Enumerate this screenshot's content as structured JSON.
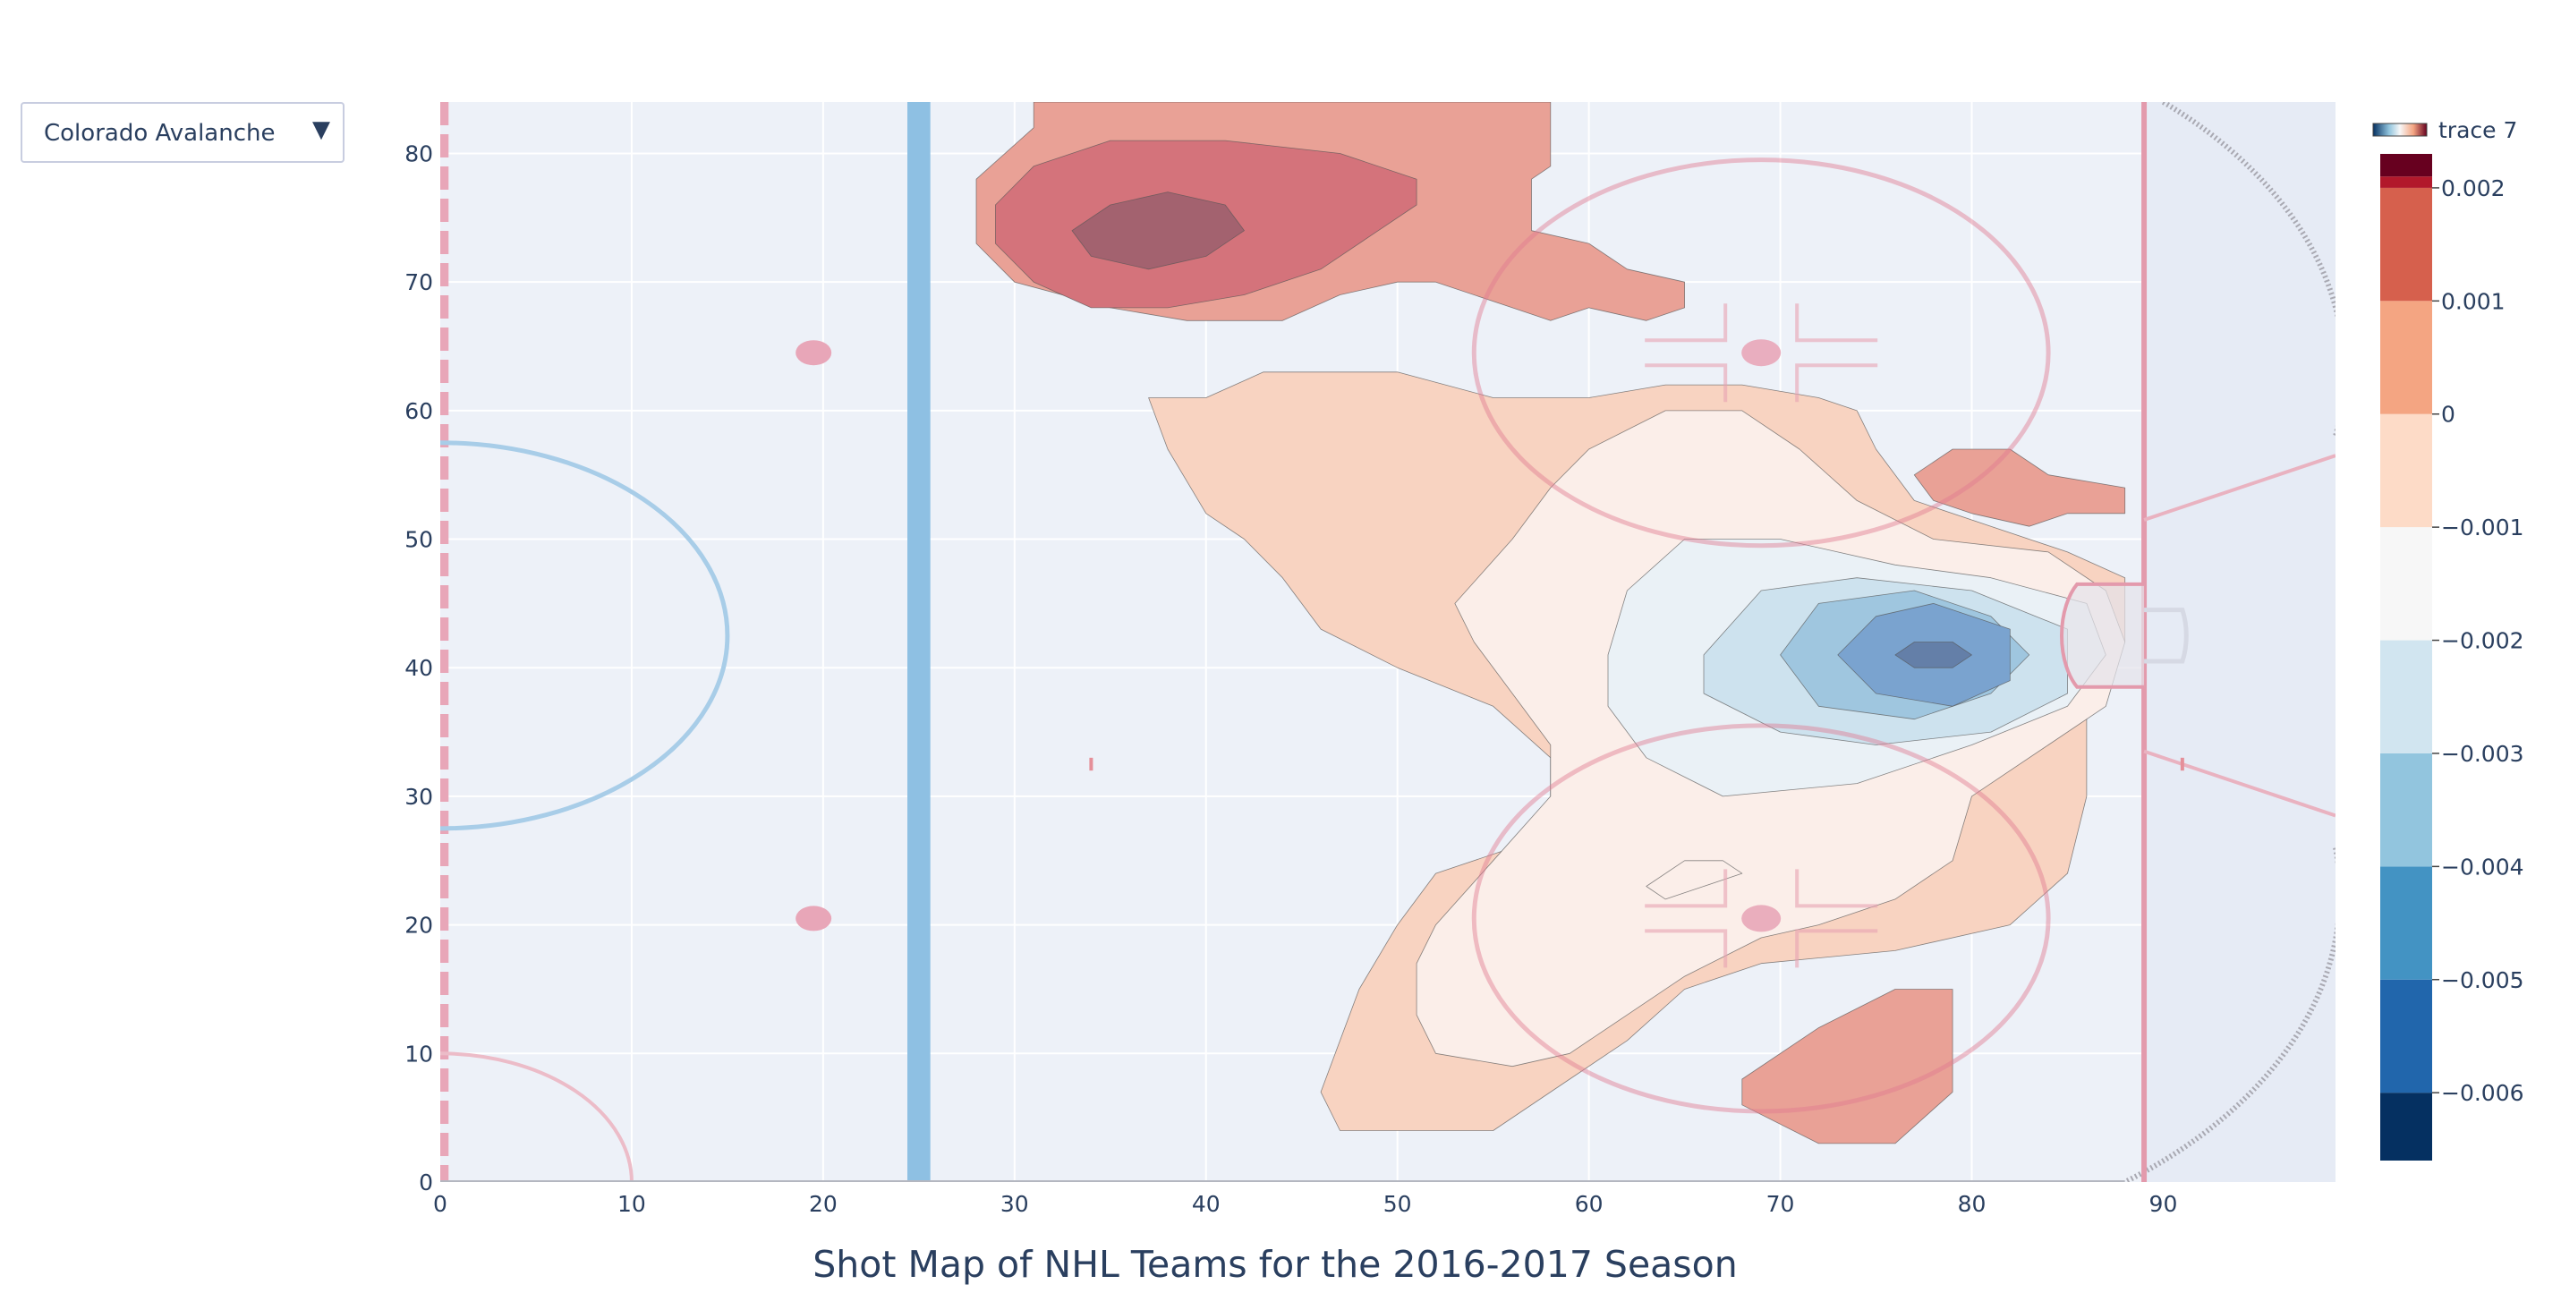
{
  "dropdown": {
    "selected": "Colorado Avalanche",
    "arrow_icon": "triangle-down-icon"
  },
  "chart_data": {
    "type": "contour",
    "title": "Shot Map of NHL Teams for the 2016-2017 Season",
    "xlabel": "",
    "ylabel": "",
    "xlim": [
      0,
      99
    ],
    "ylim": [
      0,
      84
    ],
    "x_ticks": [
      "0",
      "10",
      "20",
      "30",
      "40",
      "50",
      "60",
      "70",
      "80",
      "90"
    ],
    "y_ticks": [
      "0",
      "10",
      "20",
      "30",
      "40",
      "50",
      "60",
      "70",
      "80"
    ],
    "colorbar": {
      "name": "trace 7",
      "colorscale": "RdBu",
      "tick_labels": [
        "0.002",
        "0.001",
        "0",
        "−0.001",
        "−0.002",
        "−0.003",
        "−0.004",
        "−0.005",
        "−0.006"
      ],
      "tick_values": [
        0.002,
        0.001,
        0,
        -0.001,
        -0.002,
        -0.003,
        -0.004,
        -0.005,
        -0.006
      ],
      "range": [
        -0.0066,
        0.0023
      ],
      "colors": [
        "#053061",
        "#2166ac",
        "#4393c3",
        "#92c5de",
        "#d1e5f0",
        "#f7f7f7",
        "#fddbc7",
        "#f4a582",
        "#d6604d",
        "#b2182b",
        "#67001f"
      ]
    },
    "regions": [
      {
        "level": "0 to 0.001",
        "color": "#e9a196",
        "points": [
          [
            28,
            78
          ],
          [
            31,
            82
          ],
          [
            31,
            84
          ],
          [
            58,
            84
          ],
          [
            58,
            79
          ],
          [
            57,
            78
          ],
          [
            57,
            74
          ],
          [
            60,
            73
          ],
          [
            62,
            71
          ],
          [
            65,
            70
          ],
          [
            65,
            68
          ],
          [
            63,
            67
          ],
          [
            60,
            68
          ],
          [
            58,
            67
          ],
          [
            56,
            68
          ],
          [
            52,
            70
          ],
          [
            50,
            70
          ],
          [
            47,
            69
          ],
          [
            44,
            67
          ],
          [
            39,
            67
          ],
          [
            35,
            68
          ],
          [
            30,
            70
          ],
          [
            28,
            73
          ]
        ]
      },
      {
        "level": "0.001 to 0.002",
        "color": "#d4737b",
        "points": [
          [
            29,
            76
          ],
          [
            31,
            79
          ],
          [
            35,
            81
          ],
          [
            41,
            81
          ],
          [
            47,
            80
          ],
          [
            51,
            78
          ],
          [
            51,
            76
          ],
          [
            49,
            74
          ],
          [
            46,
            71
          ],
          [
            42,
            69
          ],
          [
            38,
            68
          ],
          [
            34,
            68
          ],
          [
            31,
            70
          ],
          [
            29,
            73
          ]
        ]
      },
      {
        "level": "above 0.002",
        "color": "#a3626f",
        "points": [
          [
            33,
            74
          ],
          [
            35,
            76
          ],
          [
            38,
            77
          ],
          [
            41,
            76
          ],
          [
            42,
            74
          ],
          [
            40,
            72
          ],
          [
            37,
            71
          ],
          [
            34,
            72
          ]
        ]
      },
      {
        "level": "0 to 0.001",
        "color": "#e9a196",
        "points": [
          [
            77,
            55
          ],
          [
            79,
            57
          ],
          [
            82,
            57
          ],
          [
            84,
            55
          ],
          [
            88,
            54
          ],
          [
            88,
            52
          ],
          [
            85,
            52
          ],
          [
            83,
            51
          ],
          [
            80,
            52
          ],
          [
            78,
            53
          ]
        ]
      },
      {
        "level": "0 to 0.001",
        "color": "#e9a196",
        "points": [
          [
            68,
            8
          ],
          [
            72,
            12
          ],
          [
            76,
            15
          ],
          [
            79,
            15
          ],
          [
            79,
            7
          ],
          [
            76,
            3
          ],
          [
            72,
            3
          ],
          [
            68,
            6
          ]
        ]
      },
      {
        "level": "-0.001 to 0",
        "color": "#f8d3c1",
        "points": [
          [
            37,
            61
          ],
          [
            40,
            61
          ],
          [
            43,
            63
          ],
          [
            50,
            63
          ],
          [
            55,
            61
          ],
          [
            60,
            61
          ],
          [
            64,
            62
          ],
          [
            68,
            62
          ],
          [
            72,
            61
          ],
          [
            74,
            60
          ],
          [
            75,
            57
          ],
          [
            77,
            53
          ],
          [
            81,
            51
          ],
          [
            85,
            49
          ],
          [
            88,
            47
          ],
          [
            88,
            42
          ],
          [
            86,
            36
          ],
          [
            86,
            30
          ],
          [
            85,
            24
          ],
          [
            82,
            20
          ],
          [
            76,
            18
          ],
          [
            69,
            17
          ],
          [
            65,
            15
          ],
          [
            62,
            11
          ],
          [
            59,
            8
          ],
          [
            55,
            4
          ],
          [
            47,
            4
          ],
          [
            46,
            7
          ],
          [
            47,
            11
          ],
          [
            48,
            15
          ],
          [
            50,
            20
          ],
          [
            52,
            24
          ],
          [
            56,
            26
          ],
          [
            58,
            30
          ],
          [
            58,
            33
          ],
          [
            55,
            37
          ],
          [
            50,
            40
          ],
          [
            46,
            43
          ],
          [
            44,
            47
          ],
          [
            42,
            50
          ],
          [
            40,
            52
          ],
          [
            38,
            57
          ]
        ]
      },
      {
        "level": "-0.002 to -0.001",
        "color": "#fbeee9",
        "points": [
          [
            53,
            45
          ],
          [
            56,
            50
          ],
          [
            58,
            54
          ],
          [
            60,
            57
          ],
          [
            64,
            60
          ],
          [
            68,
            60
          ],
          [
            71,
            57
          ],
          [
            74,
            53
          ],
          [
            78,
            50
          ],
          [
            84,
            49
          ],
          [
            87,
            46
          ],
          [
            88,
            42
          ],
          [
            87,
            37
          ],
          [
            84,
            34
          ],
          [
            80,
            30
          ],
          [
            79,
            25
          ],
          [
            76,
            22
          ],
          [
            72,
            20
          ],
          [
            69,
            19
          ],
          [
            65,
            16
          ],
          [
            62,
            13
          ],
          [
            59,
            10
          ],
          [
            56,
            9
          ],
          [
            52,
            10
          ],
          [
            51,
            13
          ],
          [
            51,
            17
          ],
          [
            52,
            20
          ],
          [
            55,
            25
          ],
          [
            58,
            30
          ],
          [
            58,
            34
          ],
          [
            56,
            38
          ],
          [
            54,
            42
          ]
        ]
      },
      {
        "level": "-0.003 to -0.002",
        "color": "#eaf1f6",
        "points": [
          [
            61,
            41
          ],
          [
            62,
            46
          ],
          [
            65,
            50
          ],
          [
            70,
            50
          ],
          [
            76,
            48
          ],
          [
            81,
            47
          ],
          [
            86,
            45
          ],
          [
            87,
            41
          ],
          [
            85,
            37
          ],
          [
            80,
            34
          ],
          [
            74,
            31
          ],
          [
            67,
            30
          ],
          [
            63,
            33
          ],
          [
            61,
            37
          ]
        ]
      },
      {
        "level": "-0.004 to -0.003",
        "color": "#cde2ee",
        "points": [
          [
            66,
            41
          ],
          [
            69,
            46
          ],
          [
            74,
            47
          ],
          [
            80,
            46
          ],
          [
            85,
            43
          ],
          [
            85,
            38
          ],
          [
            81,
            35
          ],
          [
            75,
            34
          ],
          [
            70,
            35
          ],
          [
            66,
            38
          ]
        ]
      },
      {
        "level": "-0.005 to -0.004",
        "color": "#9fc6df",
        "points": [
          [
            70,
            41
          ],
          [
            72,
            45
          ],
          [
            77,
            46
          ],
          [
            81,
            44
          ],
          [
            83,
            41
          ],
          [
            81,
            38
          ],
          [
            77,
            36
          ],
          [
            72,
            37
          ]
        ]
      },
      {
        "level": "-0.006 to -0.005",
        "color": "#7aa3cf",
        "points": [
          [
            73,
            41
          ],
          [
            75,
            44
          ],
          [
            78,
            45
          ],
          [
            82,
            43
          ],
          [
            82,
            39
          ],
          [
            79,
            37
          ],
          [
            75,
            38
          ]
        ]
      },
      {
        "level": "below -0.006",
        "color": "#647fa8",
        "points": [
          [
            76,
            41
          ],
          [
            77,
            42
          ],
          [
            79,
            42
          ],
          [
            80,
            41
          ],
          [
            79,
            40
          ],
          [
            77,
            40
          ]
        ]
      },
      {
        "level": "-0.001 to 0",
        "color": "#fbeee9",
        "points": [
          [
            63,
            23
          ],
          [
            65,
            25
          ],
          [
            67,
            25
          ],
          [
            68,
            24
          ],
          [
            66,
            23
          ],
          [
            64,
            22
          ]
        ]
      }
    ]
  }
}
